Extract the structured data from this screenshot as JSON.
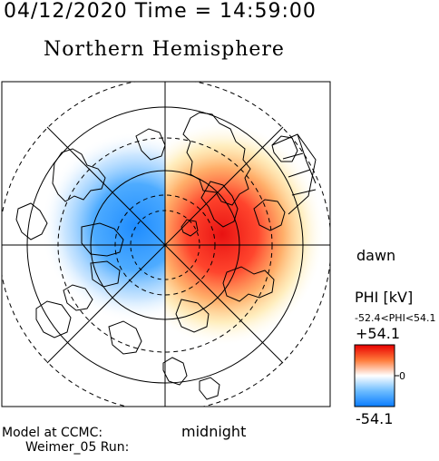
{
  "header": {
    "date_time": "04/12/2020 Time = 14:59:00",
    "hemisphere": "Northern Hemisphere"
  },
  "map": {
    "projection": "polar stereographic, north pole centered",
    "labels": {
      "dawn": "dawn",
      "midnight": "midnight"
    },
    "potential_cells": [
      {
        "name": "negative",
        "color": "#1f8fff"
      },
      {
        "name": "positive",
        "color": "#ff2a1e"
      }
    ]
  },
  "colorbar": {
    "title": "PHI [kV]",
    "range_text": "-52.4<PHI<54.1",
    "max_label": "+54.1",
    "zero_label": "0",
    "min_label": "-54.1",
    "colors": [
      "#ff0000",
      "#ffffff",
      "#0080ff"
    ]
  },
  "footer": {
    "line1": "Model at CCMC:",
    "line2": "Weimer_05 Run:"
  }
}
